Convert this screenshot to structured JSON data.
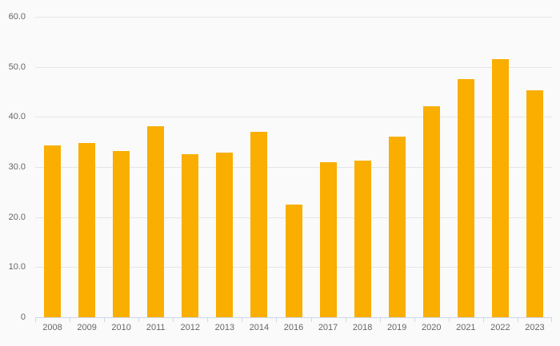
{
  "chart_data": {
    "type": "bar",
    "title": "",
    "xlabel": "",
    "ylabel": "",
    "categories": [
      "2008",
      "2009",
      "2010",
      "2011",
      "2012",
      "2013",
      "2014",
      "2016",
      "2017",
      "2018",
      "2019",
      "2020",
      "2021",
      "2022",
      "2023"
    ],
    "values": [
      34.3,
      34.8,
      33.2,
      38.1,
      32.6,
      32.9,
      37.1,
      22.5,
      31.0,
      31.3,
      36.0,
      42.2,
      47.5,
      51.5,
      45.3
    ],
    "ylim": [
      0,
      60
    ],
    "yticks": [
      0,
      10,
      20,
      30,
      40,
      50,
      60
    ],
    "ytick_labels": [
      "0",
      "10.0",
      "20.0",
      "30.0",
      "40.0",
      "50.0",
      "60.0"
    ],
    "grid": true,
    "legend": false,
    "legend_position": "none",
    "colors": {
      "bar": "#F9AE00",
      "background": "#FAFAFA",
      "gridline": "#E6E6E6",
      "axis_line": "#CCD6EB",
      "label_text": "#666666"
    }
  }
}
